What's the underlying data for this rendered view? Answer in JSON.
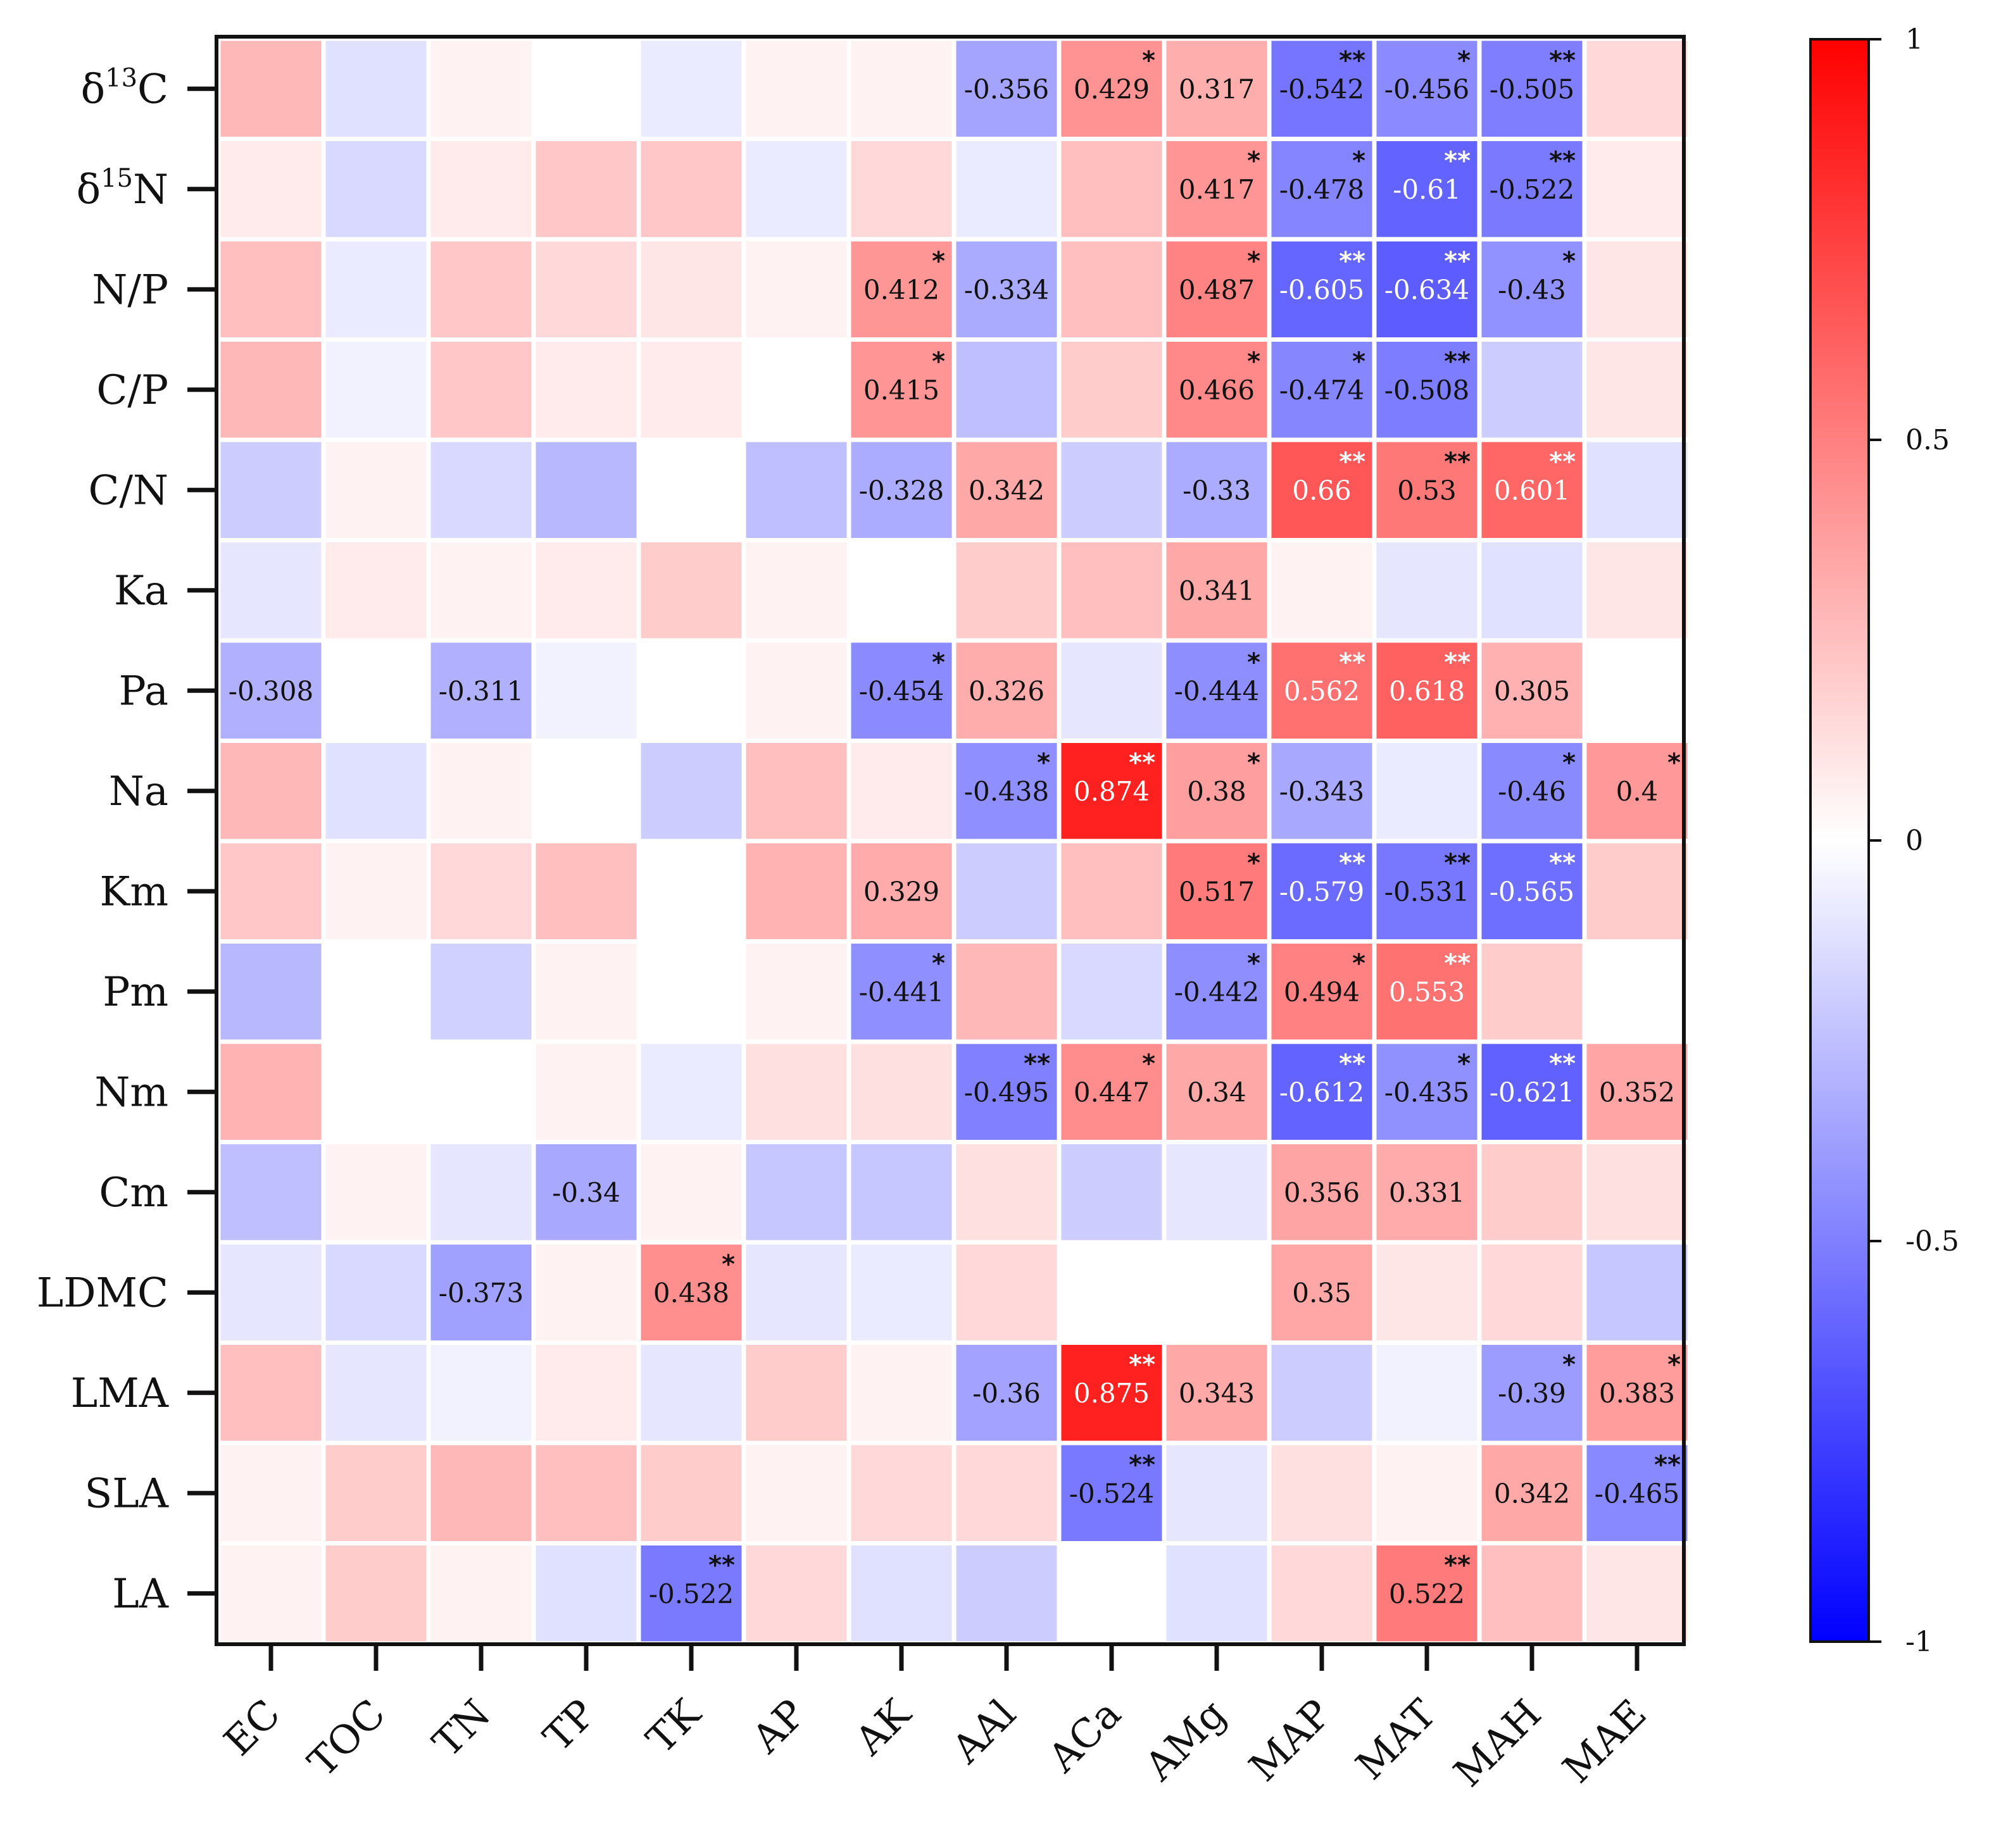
{
  "chart_data": {
    "type": "heatmap",
    "title": "",
    "rows": [
      "δ13C",
      "δ15N",
      "N/P",
      "C/P",
      "C/N",
      "Ka",
      "Pa",
      "Na",
      "Km",
      "Pm",
      "Nm",
      "Cm",
      "LDMC",
      "LMA",
      "SLA",
      "LA"
    ],
    "row_labels": [
      {
        "base": "δ",
        "sup": "13",
        "rest": "C"
      },
      {
        "base": "δ",
        "sup": "15",
        "rest": "N"
      },
      {
        "base": "N/P"
      },
      {
        "base": "C/P"
      },
      {
        "base": "C/N"
      },
      {
        "base": "Ka"
      },
      {
        "base": "Pa"
      },
      {
        "base": "Na"
      },
      {
        "base": "Km"
      },
      {
        "base": "Pm"
      },
      {
        "base": "Nm"
      },
      {
        "base": "Cm"
      },
      {
        "base": "LDMC"
      },
      {
        "base": "LMA"
      },
      {
        "base": "SLA"
      },
      {
        "base": "LA"
      }
    ],
    "columns": [
      "EC",
      "TOC",
      "TN",
      "TP",
      "TK",
      "AP",
      "AK",
      "AAl",
      "ACa",
      "AMg",
      "MAP",
      "MAT",
      "MAH",
      "MAE"
    ],
    "values": [
      [
        0.28,
        -0.12,
        0.05,
        0.0,
        -0.08,
        0.05,
        0.05,
        -0.356,
        0.429,
        0.317,
        -0.542,
        -0.456,
        -0.505,
        0.15
      ],
      [
        0.08,
        -0.15,
        0.08,
        0.22,
        0.22,
        -0.08,
        0.15,
        -0.08,
        0.25,
        0.417,
        -0.478,
        -0.61,
        -0.522,
        0.08
      ],
      [
        0.25,
        -0.08,
        0.22,
        0.15,
        0.1,
        0.05,
        0.412,
        -0.334,
        0.25,
        0.487,
        -0.605,
        -0.634,
        -0.43,
        0.1
      ],
      [
        0.28,
        -0.05,
        0.22,
        0.08,
        0.08,
        0.0,
        0.415,
        -0.25,
        0.2,
        0.466,
        -0.474,
        -0.508,
        -0.2,
        0.1
      ],
      [
        -0.2,
        0.05,
        -0.15,
        -0.28,
        0.0,
        -0.25,
        -0.328,
        0.342,
        -0.2,
        -0.33,
        0.66,
        0.53,
        0.601,
        -0.12
      ],
      [
        -0.1,
        0.08,
        0.05,
        0.08,
        0.2,
        0.05,
        0.0,
        0.2,
        0.25,
        0.341,
        0.05,
        -0.1,
        -0.12,
        0.1
      ],
      [
        -0.308,
        0.0,
        -0.311,
        -0.05,
        0.0,
        0.05,
        -0.454,
        0.326,
        -0.1,
        -0.444,
        0.562,
        0.618,
        0.305,
        0.0
      ],
      [
        0.28,
        -0.12,
        0.05,
        0.0,
        -0.2,
        0.25,
        0.08,
        -0.438,
        0.874,
        0.38,
        -0.343,
        -0.08,
        -0.46,
        0.4
      ],
      [
        0.22,
        0.05,
        0.15,
        0.25,
        0.0,
        0.3,
        0.329,
        -0.2,
        0.25,
        0.517,
        -0.579,
        -0.531,
        -0.565,
        0.2
      ],
      [
        -0.28,
        0.0,
        -0.18,
        0.05,
        0.0,
        0.05,
        -0.441,
        0.28,
        -0.15,
        -0.442,
        0.494,
        0.553,
        0.2,
        0.0
      ],
      [
        0.3,
        0.0,
        0.0,
        0.05,
        -0.08,
        0.12,
        0.12,
        -0.495,
        0.447,
        0.34,
        -0.612,
        -0.435,
        -0.621,
        0.352
      ],
      [
        -0.25,
        0.05,
        -0.1,
        -0.34,
        0.05,
        -0.22,
        -0.22,
        0.12,
        -0.2,
        -0.1,
        0.356,
        0.331,
        0.2,
        0.12
      ],
      [
        -0.1,
        -0.15,
        -0.373,
        0.05,
        0.438,
        -0.1,
        -0.08,
        0.15,
        0.0,
        0.0,
        0.35,
        0.1,
        0.15,
        -0.22
      ],
      [
        0.25,
        -0.1,
        -0.05,
        0.08,
        -0.1,
        0.2,
        0.05,
        -0.36,
        0.875,
        0.343,
        -0.2,
        -0.05,
        -0.39,
        0.383
      ],
      [
        0.05,
        0.2,
        0.28,
        0.25,
        0.2,
        0.05,
        0.15,
        0.15,
        -0.524,
        -0.1,
        0.12,
        0.05,
        0.342,
        -0.465
      ],
      [
        0.05,
        0.2,
        0.05,
        -0.12,
        -0.522,
        0.15,
        -0.12,
        -0.2,
        0.0,
        -0.12,
        0.15,
        0.522,
        0.25,
        0.1
      ]
    ],
    "labels": [
      [
        "",
        "",
        "",
        "",
        "",
        "",
        "",
        "-0.356",
        "0.429",
        "0.317",
        "-0.542",
        "-0.456",
        "-0.505",
        ""
      ],
      [
        "",
        "",
        "",
        "",
        "",
        "",
        "",
        "",
        "",
        "0.417",
        "-0.478",
        "-0.61",
        "-0.522",
        ""
      ],
      [
        "",
        "",
        "",
        "",
        "",
        "",
        "0.412",
        "-0.334",
        "",
        "0.487",
        "-0.605",
        "-0.634",
        "-0.43",
        ""
      ],
      [
        "",
        "",
        "",
        "",
        "",
        "",
        "0.415",
        "",
        "",
        "0.466",
        "-0.474",
        "-0.508",
        "",
        ""
      ],
      [
        "",
        "",
        "",
        "",
        "",
        "",
        "-0.328",
        "0.342",
        "",
        "-0.33",
        "0.66",
        "0.53",
        "0.601",
        ""
      ],
      [
        "",
        "",
        "",
        "",
        "",
        "",
        "",
        "",
        "",
        "0.341",
        "",
        "",
        "",
        ""
      ],
      [
        "-0.308",
        "",
        "-0.311",
        "",
        "",
        "",
        "-0.454",
        "0.326",
        "",
        "-0.444",
        "0.562",
        "0.618",
        "0.305",
        ""
      ],
      [
        "",
        "",
        "",
        "",
        "",
        "",
        "",
        "-0.438",
        "0.874",
        "0.38",
        "-0.343",
        "",
        "-0.46",
        "0.4"
      ],
      [
        "",
        "",
        "",
        "",
        "",
        "",
        "0.329",
        "",
        "",
        "0.517",
        "-0.579",
        "-0.531",
        "-0.565",
        ""
      ],
      [
        "",
        "",
        "",
        "",
        "",
        "",
        "-0.441",
        "",
        "",
        "-0.442",
        "0.494",
        "0.553",
        "",
        ""
      ],
      [
        "",
        "",
        "",
        "",
        "",
        "",
        "",
        "-0.495",
        "0.447",
        "0.34",
        "-0.612",
        "-0.435",
        "-0.621",
        "0.352"
      ],
      [
        "",
        "",
        "",
        "-0.34",
        "",
        "",
        "",
        "",
        "",
        "",
        "0.356",
        "0.331",
        "",
        ""
      ],
      [
        "",
        "",
        "-0.373",
        "",
        "0.438",
        "",
        "",
        "",
        "",
        "",
        "0.35",
        "",
        "",
        ""
      ],
      [
        "",
        "",
        "",
        "",
        "",
        "",
        "",
        "-0.36",
        "0.875",
        "0.343",
        "",
        "",
        "-0.39",
        "0.383"
      ],
      [
        "",
        "",
        "",
        "",
        "",
        "",
        "",
        "",
        "-0.524",
        "",
        "",
        "",
        "0.342",
        "-0.465"
      ],
      [
        "",
        "",
        "",
        "",
        "-0.522",
        "",
        "",
        "",
        "",
        "",
        "",
        "0.522",
        "",
        ""
      ]
    ],
    "significance": [
      [
        "",
        "",
        "",
        "",
        "",
        "",
        "",
        "",
        "*",
        "",
        "**",
        "*",
        "**",
        ""
      ],
      [
        "",
        "",
        "",
        "",
        "",
        "",
        "",
        "",
        "",
        "*",
        "*",
        "**",
        "**",
        ""
      ],
      [
        "",
        "",
        "",
        "",
        "",
        "",
        "*",
        "",
        "",
        "*",
        "**",
        "**",
        "*",
        ""
      ],
      [
        "",
        "",
        "",
        "",
        "",
        "",
        "*",
        "",
        "",
        "*",
        "*",
        "**",
        "",
        ""
      ],
      [
        "",
        "",
        "",
        "",
        "",
        "",
        "",
        "",
        "",
        "",
        "**",
        "**",
        "**",
        ""
      ],
      [
        "",
        "",
        "",
        "",
        "",
        "",
        "",
        "",
        "",
        "",
        "",
        "",
        "",
        ""
      ],
      [
        "",
        "",
        "",
        "",
        "",
        "",
        "*",
        "",
        "",
        "*",
        "**",
        "**",
        "",
        ""
      ],
      [
        "",
        "",
        "",
        "",
        "",
        "",
        "",
        "*",
        "**",
        "*",
        "",
        "",
        "*",
        "*"
      ],
      [
        "",
        "",
        "",
        "",
        "",
        "",
        "",
        "",
        "",
        "*",
        "**",
        "**",
        "**",
        ""
      ],
      [
        "",
        "",
        "",
        "",
        "",
        "",
        "*",
        "",
        "",
        "*",
        "*",
        "**",
        "",
        ""
      ],
      [
        "",
        "",
        "",
        "",
        "",
        "",
        "",
        "**",
        "*",
        "",
        "**",
        "*",
        "**",
        ""
      ],
      [
        "",
        "",
        "",
        "",
        "",
        "",
        "",
        "",
        "",
        "",
        "",
        "",
        "",
        ""
      ],
      [
        "",
        "",
        "",
        "",
        "*",
        "",
        "",
        "",
        "",
        "",
        "",
        "",
        "",
        ""
      ],
      [
        "",
        "",
        "",
        "",
        "",
        "",
        "",
        "",
        "**",
        "",
        "",
        "",
        "*",
        "*"
      ],
      [
        "",
        "",
        "",
        "",
        "",
        "",
        "",
        "",
        "**",
        "",
        "",
        "",
        "",
        "**"
      ],
      [
        "",
        "",
        "",
        "",
        "**",
        "",
        "",
        "",
        "",
        "",
        "",
        "**",
        "",
        ""
      ]
    ],
    "colorbar": {
      "range": [
        -1,
        1
      ],
      "ticks": [
        "1",
        "0.5",
        "0",
        "-0.5",
        "-1"
      ],
      "tick_values": [
        1,
        0.5,
        0,
        -0.5,
        -1
      ],
      "colors": {
        "low": "#0000ff",
        "mid": "#ffffff",
        "high": "#ff0000"
      }
    }
  }
}
